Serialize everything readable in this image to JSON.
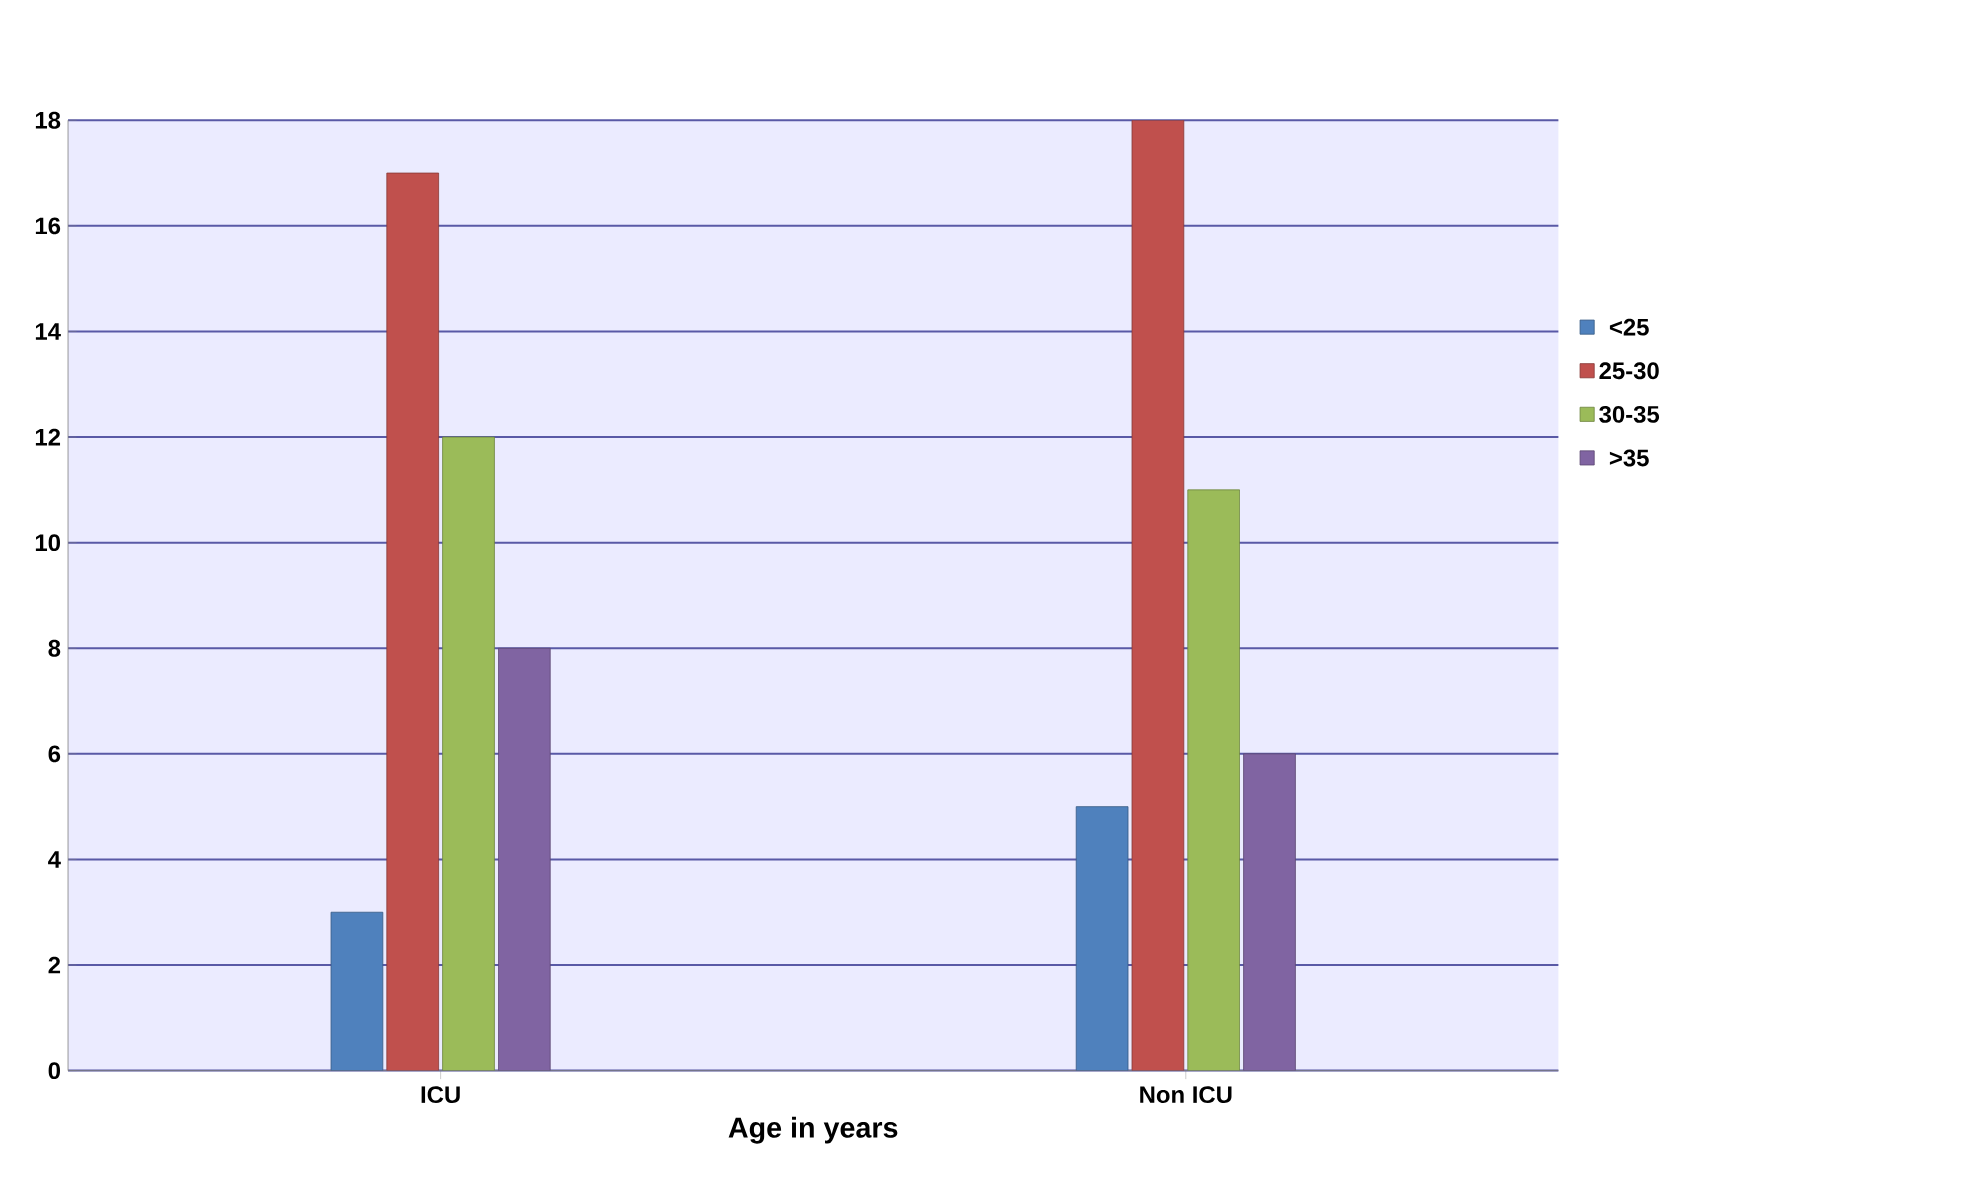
{
  "chart_data": {
    "type": "bar",
    "xlabel": "Age in years",
    "categories": [
      "ICU",
      "Non ICU"
    ],
    "series": [
      {
        "name": "<25",
        "color": "#4f81bd",
        "values": [
          3,
          5
        ]
      },
      {
        "name": "25-30",
        "color": "#c0504d",
        "values": [
          17,
          18
        ]
      },
      {
        "name": "30-35",
        "color": "#9bbb59",
        "values": [
          12,
          11
        ]
      },
      {
        "name": ">35",
        "color": "#8064a2",
        "values": [
          8,
          6
        ]
      }
    ],
    "ylim": [
      0,
      18
    ],
    "yticks": [
      0,
      2,
      4,
      6,
      8,
      10,
      12,
      14,
      16,
      18
    ],
    "grid": "y",
    "legend": "right"
  }
}
